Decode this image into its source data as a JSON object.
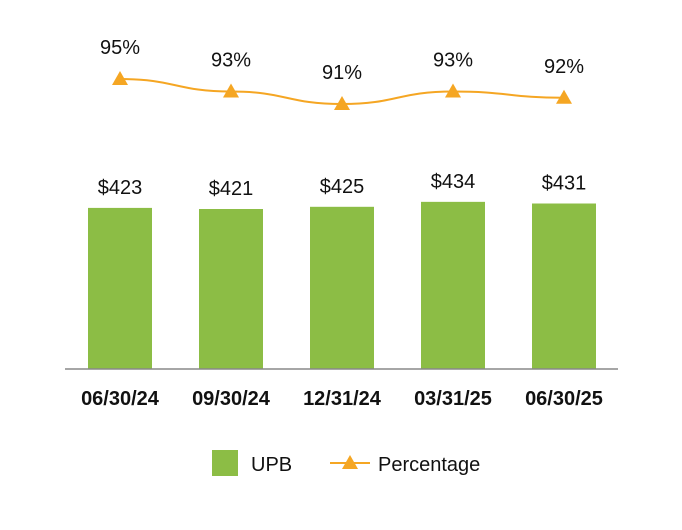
{
  "chart_data": {
    "type": "bar+line",
    "categories": [
      "06/30/24",
      "09/30/24",
      "12/31/24",
      "03/31/25",
      "06/30/25"
    ],
    "series": [
      {
        "name": "UPB",
        "type": "bar",
        "values": [
          423,
          421,
          425,
          434,
          431
        ],
        "labels": [
          "$423",
          "$421",
          "$425",
          "$434",
          "$431"
        ],
        "color": "#8cbd45"
      },
      {
        "name": "Percentage",
        "type": "line",
        "marker": "triangle",
        "values": [
          95,
          93,
          91,
          93,
          92
        ],
        "labels": [
          "95%",
          "93%",
          "91%",
          "93%",
          "92%"
        ],
        "color": "#f5a623"
      }
    ],
    "legend_position": "bottom-center",
    "grid": false
  }
}
